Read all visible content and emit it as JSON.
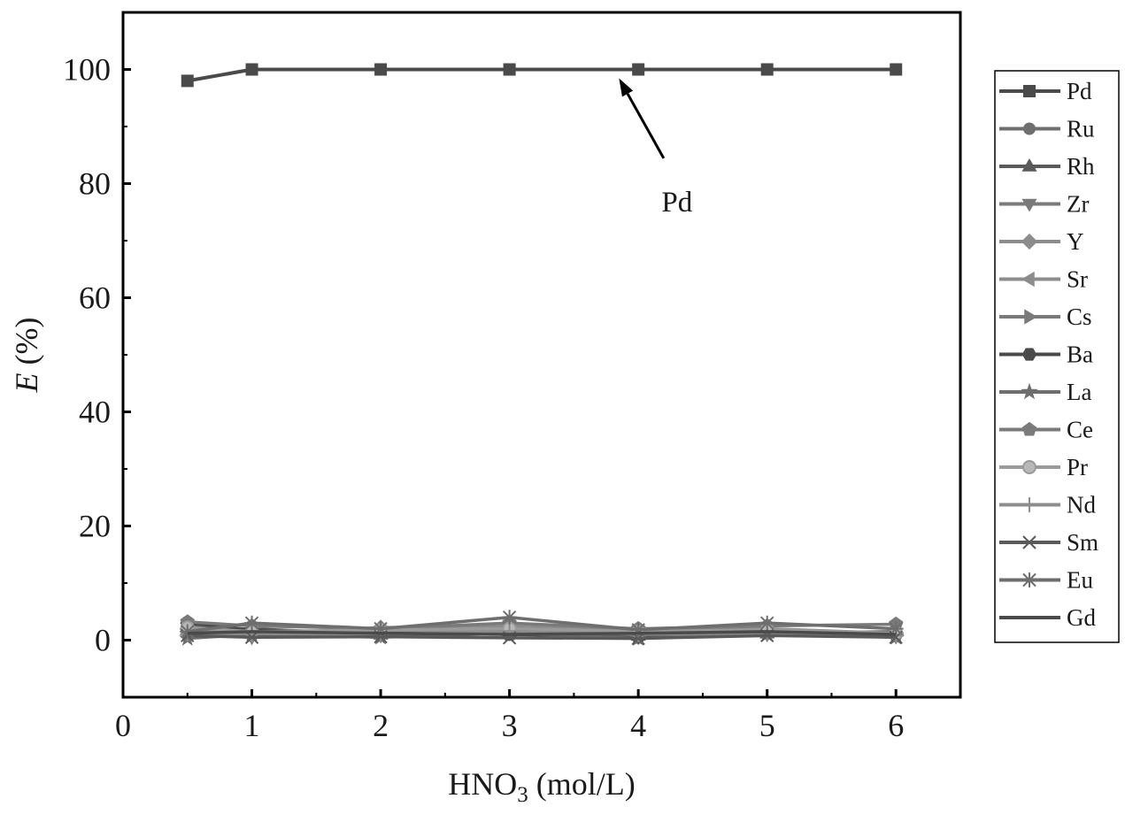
{
  "chart_data": {
    "type": "line",
    "xlabel": "HNO3 (mol/L)",
    "xlabel_main": "HNO",
    "xlabel_sub": "3",
    "xlabel_tail": " (mol/L)",
    "ylabel": "E (%)",
    "ylabel_italic": "E",
    "ylabel_tail": " (%)",
    "xlim": [
      0,
      6.5
    ],
    "ylim": [
      -10,
      110
    ],
    "xticks": [
      "0",
      "1",
      "2",
      "3",
      "4",
      "5",
      "6"
    ],
    "yticks": [
      "0",
      "20",
      "40",
      "60",
      "80",
      "100"
    ],
    "x": [
      0.5,
      1,
      2,
      3,
      4,
      5,
      6
    ],
    "grid": false,
    "legend_position": "right, outside plot",
    "annotation": {
      "text": "Pd",
      "target": [
        3.85,
        100
      ],
      "label_at": [
        4.3,
        77
      ]
    },
    "colors": {
      "dark": "#4a4a4a",
      "mid": "#6e6e6e",
      "light": "#8c8c8c"
    },
    "series": [
      {
        "name": "Pd",
        "marker": "square",
        "color": "#4a4a4a",
        "values": [
          98,
          100,
          100,
          100,
          100,
          100,
          100
        ]
      },
      {
        "name": "Ru",
        "marker": "circle",
        "color": "#6e6e6e",
        "values": [
          2.5,
          1.5,
          1.2,
          2.0,
          1.0,
          1.5,
          0.8
        ]
      },
      {
        "name": "Rh",
        "marker": "triangle-up",
        "color": "#5a5a5a",
        "values": [
          1.8,
          2.0,
          1.0,
          1.5,
          0.8,
          1.2,
          1.5
        ]
      },
      {
        "name": "Zr",
        "marker": "triangle-down",
        "color": "#7a7a7a",
        "values": [
          1.0,
          0.5,
          0.8,
          1.2,
          0.5,
          1.0,
          0.6
        ]
      },
      {
        "name": "Y",
        "marker": "diamond",
        "color": "#8c8c8c",
        "values": [
          2.0,
          1.0,
          2.2,
          2.5,
          1.5,
          2.0,
          1.2
        ]
      },
      {
        "name": "Sr",
        "marker": "triangle-left",
        "color": "#8c8c8c",
        "values": [
          1.5,
          1.2,
          1.5,
          1.8,
          1.2,
          1.5,
          1.0
        ]
      },
      {
        "name": "Cs",
        "marker": "triangle-right",
        "color": "#7a7a7a",
        "values": [
          1.2,
          0.8,
          1.0,
          1.5,
          0.8,
          1.2,
          0.8
        ]
      },
      {
        "name": "Ba",
        "marker": "hexagon",
        "color": "#4a4a4a",
        "values": [
          3.0,
          1.8,
          1.2,
          1.0,
          0.5,
          1.5,
          1.0
        ]
      },
      {
        "name": "La",
        "marker": "star",
        "color": "#6e6e6e",
        "values": [
          0.3,
          1.0,
          0.5,
          1.2,
          0.3,
          1.0,
          0.5
        ]
      },
      {
        "name": "Ce",
        "marker": "pentagon",
        "color": "#7a7a7a",
        "values": [
          3.2,
          2.5,
          2.0,
          3.0,
          2.0,
          2.5,
          2.8
        ]
      },
      {
        "name": "Pr",
        "marker": "circle-light",
        "color": "#9a9a9a",
        "values": [
          2.2,
          1.5,
          1.8,
          2.0,
          1.5,
          1.8,
          1.2
        ]
      },
      {
        "name": "Nd",
        "marker": "plus",
        "color": "#8c8c8c",
        "values": [
          1.0,
          1.2,
          1.0,
          1.5,
          1.0,
          1.2,
          0.8
        ]
      },
      {
        "name": "Sm",
        "marker": "x",
        "color": "#5a5a5a",
        "values": [
          0.8,
          0.5,
          0.6,
          0.4,
          0.3,
          0.8,
          0.5
        ]
      },
      {
        "name": "Eu",
        "marker": "asterisk",
        "color": "#6e6e6e",
        "values": [
          1.5,
          3.0,
          2.0,
          4.0,
          1.8,
          3.0,
          2.0
        ]
      },
      {
        "name": "Gd",
        "marker": "none",
        "color": "#4a4a4a",
        "values": [
          1.2,
          1.5,
          1.2,
          1.0,
          1.2,
          1.5,
          1.0
        ]
      }
    ]
  }
}
